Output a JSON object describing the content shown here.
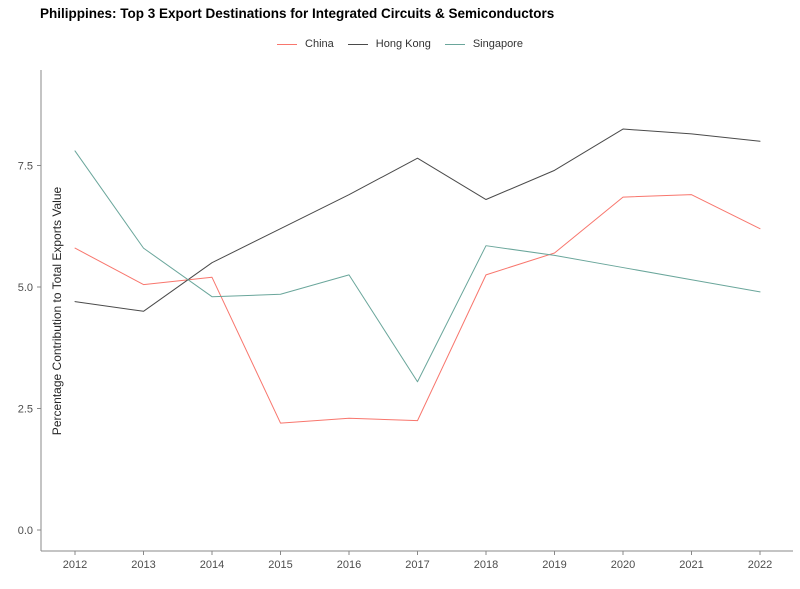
{
  "chart": {
    "title": "Philippines: Top 3 Export Destinations for Integrated Circuits & Semiconductors"
  },
  "chart_data": {
    "type": "line",
    "title": "Philippines: Top 3 Export Destinations for Integrated Circuits & Semiconductors",
    "xlabel": "",
    "ylabel": "Percentage Contribution to Total Exports Value",
    "x": [
      2012,
      2013,
      2014,
      2015,
      2016,
      2017,
      2018,
      2019,
      2020,
      2021,
      2022
    ],
    "series": [
      {
        "name": "China",
        "color": "#f8766d",
        "values": [
          5.8,
          5.05,
          5.2,
          2.2,
          2.3,
          2.25,
          5.25,
          5.7,
          6.85,
          6.9,
          6.2
        ]
      },
      {
        "name": "Hong Kong",
        "color": "#4a4a4a",
        "values": [
          4.7,
          4.5,
          5.5,
          6.2,
          6.9,
          7.65,
          6.8,
          7.4,
          8.25,
          8.15,
          8.0
        ]
      },
      {
        "name": "Singapore",
        "color": "#6aa69b",
        "values": [
          7.8,
          5.8,
          4.8,
          4.85,
          5.25,
          3.05,
          5.85,
          5.65,
          5.4,
          5.15,
          4.9
        ]
      }
    ],
    "yticks": [
      "0.0",
      "2.5",
      "5.0",
      "7.5"
    ],
    "ytick_values": [
      0.0,
      2.5,
      5.0,
      7.5
    ],
    "ylim": [
      0,
      9.5
    ],
    "grid": false,
    "legend_position": "top",
    "axis_color": "#888888",
    "tick_label_color": "#4d4d4d"
  }
}
